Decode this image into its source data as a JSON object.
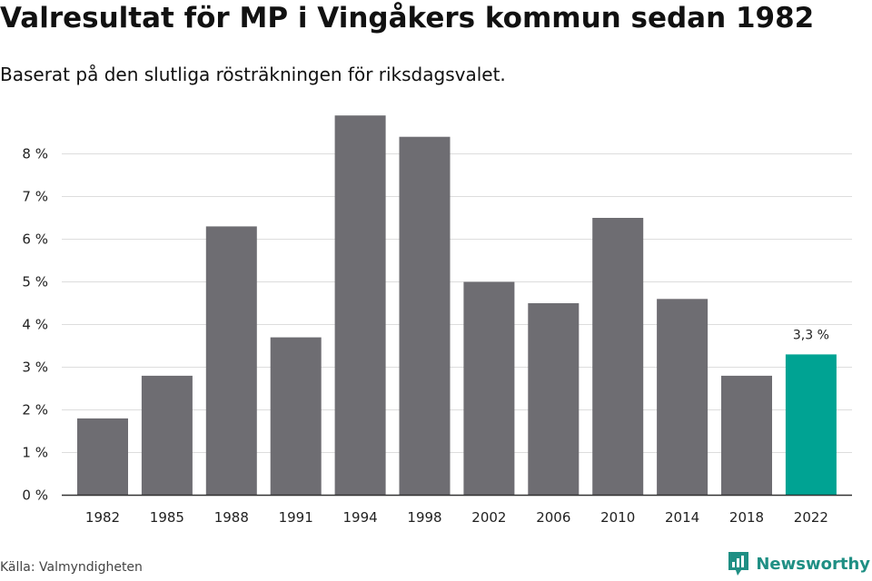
{
  "title": "Valresultat för MP i Vingåkers kommun sedan 1982",
  "subtitle": "Baserat på den slutliga rösträkningen för riksdagsvalet.",
  "source": "Källa: Valmyndigheten",
  "brand": {
    "name": "Newsworthy",
    "icon": "newsworthy-logo-icon",
    "color": "#1f8f84"
  },
  "colors": {
    "bar": "#6e6d72",
    "highlight": "#00a393",
    "grid": "#dddddd",
    "axis": "#333333"
  },
  "chart_data": {
    "type": "bar",
    "title": "Valresultat för MP i Vingåkers kommun sedan 1982",
    "subtitle": "Baserat på den slutliga rösträkningen för riksdagsvalet.",
    "xlabel": "",
    "ylabel": "",
    "categories": [
      "1982",
      "1985",
      "1988",
      "1991",
      "1994",
      "1998",
      "2002",
      "2006",
      "2010",
      "2014",
      "2018",
      "2022"
    ],
    "values": [
      1.8,
      2.8,
      6.3,
      3.7,
      8.9,
      8.4,
      5.0,
      4.5,
      6.5,
      4.6,
      2.8,
      3.3
    ],
    "unit": "%",
    "ylim": [
      0,
      9
    ],
    "yticks": [
      0,
      1,
      2,
      3,
      4,
      5,
      6,
      7,
      8
    ],
    "ytick_labels": [
      "0 %",
      "1 %",
      "2 %",
      "3 %",
      "4 %",
      "5 %",
      "6 %",
      "7 %",
      "8 %"
    ],
    "grid": true,
    "highlight_index": 11,
    "data_labels": [
      {
        "index": 11,
        "text": "3,3 %"
      }
    ]
  }
}
